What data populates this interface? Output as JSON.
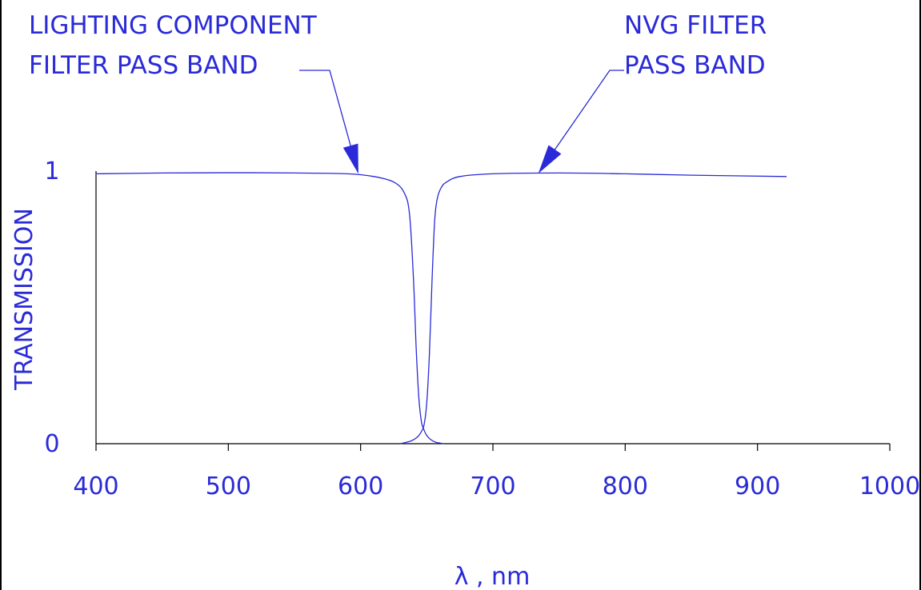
{
  "chart_data": {
    "type": "line",
    "title": "",
    "xlabel": "λ , nm",
    "ylabel": "TRANSMISSION",
    "xlim": [
      400,
      1000
    ],
    "ylim": [
      0,
      1
    ],
    "x_ticks": [
      "400",
      "500",
      "600",
      "700",
      "800",
      "900",
      "1000"
    ],
    "y_ticks": [
      "0",
      "1"
    ],
    "grid": false,
    "series": [
      {
        "x": [
          400,
          450,
          500,
          550,
          590,
          610,
          625,
          633,
          637,
          640,
          642,
          644,
          646,
          648,
          650,
          653,
          657,
          663
        ],
        "y": [
          0.99,
          0.993,
          0.994,
          0.993,
          0.99,
          0.98,
          0.96,
          0.92,
          0.84,
          0.6,
          0.35,
          0.17,
          0.08,
          0.05,
          0.03,
          0.015,
          0.005,
          0
        ]
      },
      {
        "x": [
          630,
          638,
          643,
          646,
          648,
          650,
          652,
          654,
          656,
          658,
          661,
          665,
          675,
          700,
          750,
          800,
          850,
          922
        ],
        "y": [
          0,
          0.01,
          0.025,
          0.045,
          0.07,
          0.15,
          0.33,
          0.6,
          0.82,
          0.9,
          0.94,
          0.96,
          0.98,
          0.99,
          0.993,
          0.99,
          0.985,
          0.98
        ]
      }
    ],
    "line_color": "#2a2ad8",
    "text_color": "#2a2ad8",
    "axis_color": "#000000",
    "annotations": [
      {
        "lines": [
          "LIGHTING COMPONENT",
          "FILTER PASS BAND"
        ],
        "points_to": {
          "x": 598,
          "y": 0.99
        }
      },
      {
        "lines": [
          "NVG FILTER",
          "PASS BAND"
        ],
        "points_to": {
          "x": 735,
          "y": 0.99
        }
      }
    ]
  }
}
